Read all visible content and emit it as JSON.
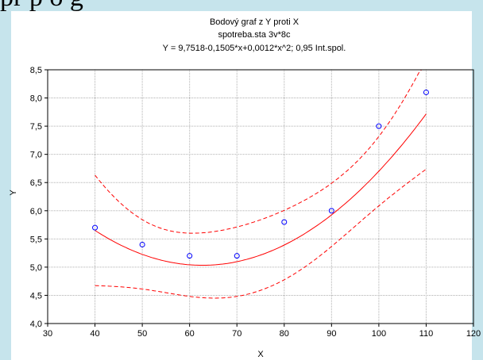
{
  "slide": {
    "header_text": "pr p  o     g"
  },
  "chart_data": {
    "type": "scatter",
    "title": "Bodový graf z Y proti X",
    "subtitle": "spotreba.sta 3v*8c",
    "equation": "Y = 9,7518-0,1505*x+0,0012*x^2; 0,95 Int.spol.",
    "xlabel": "X",
    "ylabel": "Y",
    "xlim": [
      30,
      120
    ],
    "ylim": [
      4.0,
      8.5
    ],
    "x_ticks": [
      "30",
      "40",
      "50",
      "60",
      "70",
      "80",
      "90",
      "100",
      "110",
      "120"
    ],
    "y_ticks": [
      "4,0",
      "4,5",
      "5,0",
      "5,5",
      "6,0",
      "6,5",
      "7,0",
      "7,5",
      "8,0",
      "8,5"
    ],
    "grid": true,
    "points": {
      "x": [
        40,
        50,
        60,
        70,
        80,
        90,
        100,
        110
      ],
      "y": [
        5.7,
        5.4,
        5.2,
        5.2,
        5.8,
        6.0,
        7.5,
        8.1
      ]
    },
    "fit": {
      "type": "quadratic",
      "coefficients": [
        9.7518,
        -0.1505,
        0.0012
      ],
      "x_range": [
        40,
        110
      ]
    },
    "confidence_level": 0.95,
    "colors": {
      "points": "#0000ff",
      "fit": "#ff0000",
      "band": "#ff0000",
      "grid": "#b0b0b0"
    }
  }
}
